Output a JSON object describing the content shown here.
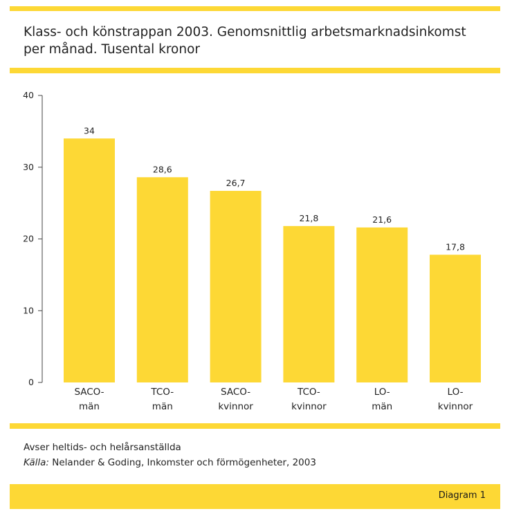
{
  "title": "Klass- och könstrappan 2003. Genomsnittlig arbetsmarknadsinkomst per månad. Tusental kronor",
  "notes": {
    "line1": "Avser heltids- och helårsanställda",
    "source_label": "Källa:",
    "source_text": " Nelander & Goding, Inkomster och förmögenheter, 2003"
  },
  "footer": {
    "label": "Diagram 1"
  },
  "colors": {
    "bar": "#fdd835",
    "accent": "#fdd835",
    "axis": "#444444"
  },
  "chart_data": {
    "type": "bar",
    "categories": [
      [
        "SACO-",
        "män"
      ],
      [
        "TCO-",
        "män"
      ],
      [
        "SACO-",
        "kvinnor"
      ],
      [
        "TCO-",
        "kvinnor"
      ],
      [
        "LO-",
        "män"
      ],
      [
        "LO-",
        "kvinnor"
      ]
    ],
    "values": [
      34,
      28.6,
      26.7,
      21.8,
      21.6,
      17.8
    ],
    "value_labels": [
      "34",
      "28,6",
      "26,7",
      "21,8",
      "21,6",
      "17,8"
    ],
    "yticks": [
      0,
      10,
      20,
      30,
      40
    ],
    "ylim": [
      0,
      40
    ],
    "grid": false,
    "legend": "none"
  }
}
